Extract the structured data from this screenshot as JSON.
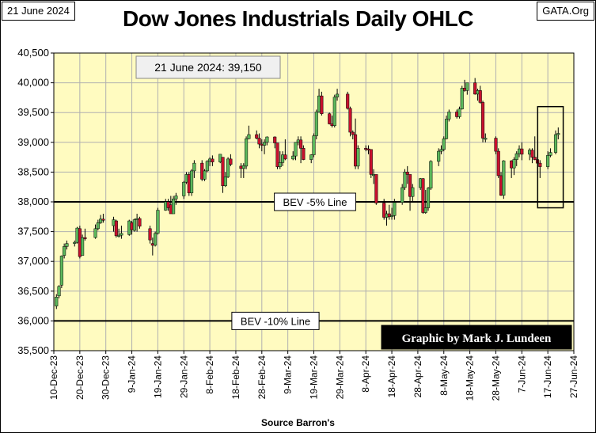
{
  "header": {
    "date_label": "21 June 2024",
    "source_site": "GATA.Org",
    "title": "Dow Jones Industrials Daily OHLC"
  },
  "colors": {
    "plot_background": "#fffbc0",
    "up_candle": "#5cb85c",
    "down_candle": "#c8102e",
    "grid": "#b0b0b0",
    "credit_background": "#000000",
    "credit_text": "#ffffff"
  },
  "chart_data": {
    "type": "candlestick",
    "title": "Dow Jones Industrials Daily OHLC",
    "xlabel": "Source Barron's",
    "ylabel": "",
    "ylim": [
      35500,
      40500
    ],
    "yticks": [
      35500,
      36000,
      36500,
      37000,
      37500,
      38000,
      38500,
      39000,
      39500,
      40000,
      40500
    ],
    "ytick_labels": [
      "35,500",
      "36,000",
      "36,500",
      "37,000",
      "37,500",
      "38,000",
      "38,500",
      "39,000",
      "39,500",
      "40,000",
      "40,500"
    ],
    "xticks": [
      "10-Dec-23",
      "20-Dec-23",
      "30-Dec-23",
      "9-Jan-24",
      "19-Jan-24",
      "29-Jan-24",
      "8-Feb-24",
      "18-Feb-24",
      "28-Feb-24",
      "9-Mar-24",
      "19-Mar-24",
      "29-Mar-24",
      "8-Apr-24",
      "18-Apr-24",
      "28-Apr-24",
      "8-May-24",
      "18-May-24",
      "28-May-24",
      "7-Jun-24",
      "17-Jun-24",
      "27-Jun-24"
    ],
    "xlim": [
      "2023-12-10",
      "2024-06-27"
    ],
    "grid": true,
    "current_value_label": "21 June 2024:  39,150",
    "reference_lines": [
      {
        "value": 38000,
        "label": "BEV -5% Line"
      },
      {
        "value": 36000,
        "label": "BEV -10% Line"
      }
    ],
    "highlight_box": {
      "x_start": "2024-06-14",
      "x_end": "2024-06-22",
      "y_low": 37900,
      "y_high": 39600
    },
    "credit": "Graphic by Mark J. Lundeen",
    "candles": [
      {
        "date": "2023-12-11",
        "o": 36250,
        "h": 36450,
        "l": 36200,
        "c": 36400
      },
      {
        "date": "2023-12-12",
        "o": 36420,
        "h": 36600,
        "l": 36380,
        "c": 36580
      },
      {
        "date": "2023-12-13",
        "o": 36600,
        "h": 37100,
        "l": 36550,
        "c": 37090
      },
      {
        "date": "2023-12-14",
        "o": 37100,
        "h": 37300,
        "l": 37050,
        "c": 37250
      },
      {
        "date": "2023-12-15",
        "o": 37250,
        "h": 37350,
        "l": 37200,
        "c": 37300
      },
      {
        "date": "2023-12-18",
        "o": 37300,
        "h": 37350,
        "l": 37250,
        "c": 37320
      },
      {
        "date": "2023-12-19",
        "o": 37320,
        "h": 37580,
        "l": 37300,
        "c": 37560
      },
      {
        "date": "2023-12-20",
        "o": 37550,
        "h": 37600,
        "l": 37050,
        "c": 37080
      },
      {
        "date": "2023-12-21",
        "o": 37100,
        "h": 37450,
        "l": 37100,
        "c": 37400
      },
      {
        "date": "2023-12-22",
        "o": 37400,
        "h": 37550,
        "l": 37350,
        "c": 37380
      },
      {
        "date": "2023-12-26",
        "o": 37400,
        "h": 37620,
        "l": 37380,
        "c": 37550
      },
      {
        "date": "2023-12-27",
        "o": 37550,
        "h": 37700,
        "l": 37520,
        "c": 37650
      },
      {
        "date": "2023-12-28",
        "o": 37650,
        "h": 37780,
        "l": 37630,
        "c": 37710
      },
      {
        "date": "2023-12-29",
        "o": 37710,
        "h": 37800,
        "l": 37650,
        "c": 37690
      },
      {
        "date": "2024-01-02",
        "o": 37600,
        "h": 37750,
        "l": 37500,
        "c": 37700
      },
      {
        "date": "2024-01-03",
        "o": 37680,
        "h": 37700,
        "l": 37400,
        "c": 37430
      },
      {
        "date": "2024-01-04",
        "o": 37420,
        "h": 37550,
        "l": 37400,
        "c": 37440
      },
      {
        "date": "2024-01-05",
        "o": 37440,
        "h": 37600,
        "l": 37380,
        "c": 37470
      },
      {
        "date": "2024-01-08",
        "o": 37450,
        "h": 37700,
        "l": 37430,
        "c": 37680
      },
      {
        "date": "2024-01-09",
        "o": 37650,
        "h": 37680,
        "l": 37450,
        "c": 37530
      },
      {
        "date": "2024-01-10",
        "o": 37520,
        "h": 37720,
        "l": 37500,
        "c": 37700
      },
      {
        "date": "2024-01-11",
        "o": 37700,
        "h": 37800,
        "l": 37500,
        "c": 37720
      },
      {
        "date": "2024-01-12",
        "o": 37720,
        "h": 37750,
        "l": 37550,
        "c": 37590
      },
      {
        "date": "2024-01-16",
        "o": 37550,
        "h": 37600,
        "l": 37300,
        "c": 37360
      },
      {
        "date": "2024-01-17",
        "o": 37300,
        "h": 37400,
        "l": 37100,
        "c": 37270
      },
      {
        "date": "2024-01-18",
        "o": 37270,
        "h": 37500,
        "l": 37250,
        "c": 37470
      },
      {
        "date": "2024-01-19",
        "o": 37470,
        "h": 37900,
        "l": 37450,
        "c": 37860
      },
      {
        "date": "2024-01-22",
        "o": 37860,
        "h": 38050,
        "l": 37850,
        "c": 38000
      },
      {
        "date": "2024-01-23",
        "o": 38000,
        "h": 38050,
        "l": 37850,
        "c": 37900
      },
      {
        "date": "2024-01-24",
        "o": 37950,
        "h": 38100,
        "l": 37800,
        "c": 37800
      },
      {
        "date": "2024-01-25",
        "o": 37800,
        "h": 38100,
        "l": 37800,
        "c": 38050
      },
      {
        "date": "2024-01-26",
        "o": 38050,
        "h": 38150,
        "l": 37950,
        "c": 38100
      },
      {
        "date": "2024-01-29",
        "o": 38100,
        "h": 38350,
        "l": 38050,
        "c": 38330
      },
      {
        "date": "2024-01-30",
        "o": 38330,
        "h": 38500,
        "l": 38300,
        "c": 38460
      },
      {
        "date": "2024-01-31",
        "o": 38460,
        "h": 38500,
        "l": 38100,
        "c": 38150
      },
      {
        "date": "2024-02-01",
        "o": 38150,
        "h": 38550,
        "l": 38100,
        "c": 38520
      },
      {
        "date": "2024-02-02",
        "o": 38520,
        "h": 38700,
        "l": 38400,
        "c": 38650
      },
      {
        "date": "2024-02-05",
        "o": 38650,
        "h": 38700,
        "l": 38350,
        "c": 38380
      },
      {
        "date": "2024-02-06",
        "o": 38380,
        "h": 38550,
        "l": 38350,
        "c": 38520
      },
      {
        "date": "2024-02-07",
        "o": 38520,
        "h": 38700,
        "l": 38500,
        "c": 38680
      },
      {
        "date": "2024-02-08",
        "o": 38680,
        "h": 38750,
        "l": 38600,
        "c": 38720
      },
      {
        "date": "2024-02-09",
        "o": 38720,
        "h": 38780,
        "l": 38600,
        "c": 38670
      },
      {
        "date": "2024-02-12",
        "o": 38670,
        "h": 38800,
        "l": 38650,
        "c": 38800
      },
      {
        "date": "2024-02-13",
        "o": 38750,
        "h": 38750,
        "l": 38150,
        "c": 38270
      },
      {
        "date": "2024-02-14",
        "o": 38270,
        "h": 38500,
        "l": 38250,
        "c": 38420
      },
      {
        "date": "2024-02-15",
        "o": 38420,
        "h": 38750,
        "l": 38400,
        "c": 38720
      },
      {
        "date": "2024-02-16",
        "o": 38720,
        "h": 38800,
        "l": 38600,
        "c": 38630
      },
      {
        "date": "2024-02-20",
        "o": 38600,
        "h": 38650,
        "l": 38400,
        "c": 38560
      },
      {
        "date": "2024-02-21",
        "o": 38560,
        "h": 38650,
        "l": 38400,
        "c": 38610
      },
      {
        "date": "2024-02-22",
        "o": 38600,
        "h": 39100,
        "l": 38550,
        "c": 39060
      },
      {
        "date": "2024-02-23",
        "o": 39060,
        "h": 39280,
        "l": 39050,
        "c": 39130
      },
      {
        "date": "2024-02-26",
        "o": 39130,
        "h": 39200,
        "l": 39050,
        "c": 39070
      },
      {
        "date": "2024-02-27",
        "o": 39070,
        "h": 39150,
        "l": 38900,
        "c": 38970
      },
      {
        "date": "2024-02-28",
        "o": 38970,
        "h": 39050,
        "l": 38850,
        "c": 38950
      },
      {
        "date": "2024-02-29",
        "o": 38950,
        "h": 39050,
        "l": 38800,
        "c": 39000
      },
      {
        "date": "2024-03-01",
        "o": 39000,
        "h": 39100,
        "l": 38950,
        "c": 39090
      },
      {
        "date": "2024-03-04",
        "o": 39090,
        "h": 39100,
        "l": 38900,
        "c": 38990
      },
      {
        "date": "2024-03-05",
        "o": 38990,
        "h": 38990,
        "l": 38550,
        "c": 38590
      },
      {
        "date": "2024-03-06",
        "o": 38590,
        "h": 38850,
        "l": 38550,
        "c": 38660
      },
      {
        "date": "2024-03-07",
        "o": 38660,
        "h": 38850,
        "l": 38600,
        "c": 38790
      },
      {
        "date": "2024-03-08",
        "o": 38790,
        "h": 39050,
        "l": 38700,
        "c": 38720
      },
      {
        "date": "2024-03-11",
        "o": 38720,
        "h": 38850,
        "l": 38700,
        "c": 38770
      },
      {
        "date": "2024-03-12",
        "o": 38770,
        "h": 39000,
        "l": 38700,
        "c": 39000
      },
      {
        "date": "2024-03-13",
        "o": 39000,
        "h": 39100,
        "l": 38950,
        "c": 39040
      },
      {
        "date": "2024-03-14",
        "o": 39040,
        "h": 39100,
        "l": 38650,
        "c": 38900
      },
      {
        "date": "2024-03-15",
        "o": 38900,
        "h": 38950,
        "l": 38700,
        "c": 38710
      },
      {
        "date": "2024-03-18",
        "o": 38710,
        "h": 38800,
        "l": 38650,
        "c": 38790
      },
      {
        "date": "2024-03-19",
        "o": 38790,
        "h": 39150,
        "l": 38750,
        "c": 39110
      },
      {
        "date": "2024-03-20",
        "o": 39110,
        "h": 39550,
        "l": 39050,
        "c": 39510
      },
      {
        "date": "2024-03-21",
        "o": 39510,
        "h": 39900,
        "l": 39500,
        "c": 39780
      },
      {
        "date": "2024-03-22",
        "o": 39780,
        "h": 39850,
        "l": 39450,
        "c": 39480
      },
      {
        "date": "2024-03-25",
        "o": 39480,
        "h": 39500,
        "l": 39300,
        "c": 39310
      },
      {
        "date": "2024-03-26",
        "o": 39310,
        "h": 39450,
        "l": 39250,
        "c": 39280
      },
      {
        "date": "2024-03-27",
        "o": 39280,
        "h": 39800,
        "l": 39250,
        "c": 39760
      },
      {
        "date": "2024-03-28",
        "o": 39760,
        "h": 39900,
        "l": 39700,
        "c": 39810
      },
      {
        "date": "2024-04-01",
        "o": 39810,
        "h": 39850,
        "l": 39550,
        "c": 39570
      },
      {
        "date": "2024-04-02",
        "o": 39570,
        "h": 39600,
        "l": 39100,
        "c": 39170
      },
      {
        "date": "2024-04-03",
        "o": 39170,
        "h": 39200,
        "l": 39050,
        "c": 39130
      },
      {
        "date": "2024-04-04",
        "o": 39130,
        "h": 39400,
        "l": 38550,
        "c": 38600
      },
      {
        "date": "2024-04-05",
        "o": 38600,
        "h": 38950,
        "l": 38550,
        "c": 38900
      },
      {
        "date": "2024-04-08",
        "o": 38900,
        "h": 38950,
        "l": 38850,
        "c": 38890
      },
      {
        "date": "2024-04-09",
        "o": 38890,
        "h": 38950,
        "l": 38800,
        "c": 38880
      },
      {
        "date": "2024-04-10",
        "o": 38880,
        "h": 38880,
        "l": 38400,
        "c": 38460
      },
      {
        "date": "2024-04-11",
        "o": 38460,
        "h": 38550,
        "l": 38300,
        "c": 38460
      },
      {
        "date": "2024-04-12",
        "o": 38460,
        "h": 38460,
        "l": 37950,
        "c": 37980
      },
      {
        "date": "2024-04-15",
        "o": 37980,
        "h": 38050,
        "l": 37700,
        "c": 37740
      },
      {
        "date": "2024-04-16",
        "o": 37740,
        "h": 37850,
        "l": 37600,
        "c": 37800
      },
      {
        "date": "2024-04-17",
        "o": 37800,
        "h": 37950,
        "l": 37700,
        "c": 37750
      },
      {
        "date": "2024-04-18",
        "o": 37750,
        "h": 37900,
        "l": 37700,
        "c": 37770
      },
      {
        "date": "2024-04-19",
        "o": 37770,
        "h": 38050,
        "l": 37700,
        "c": 37990
      },
      {
        "date": "2024-04-22",
        "o": 37990,
        "h": 38300,
        "l": 37950,
        "c": 38240
      },
      {
        "date": "2024-04-23",
        "o": 38240,
        "h": 38550,
        "l": 38200,
        "c": 38500
      },
      {
        "date": "2024-04-24",
        "o": 38500,
        "h": 38600,
        "l": 38300,
        "c": 38460
      },
      {
        "date": "2024-04-25",
        "o": 38460,
        "h": 38460,
        "l": 37850,
        "c": 38090
      },
      {
        "date": "2024-04-26",
        "o": 38090,
        "h": 38300,
        "l": 38000,
        "c": 38240
      },
      {
        "date": "2024-04-29",
        "o": 38240,
        "h": 38400,
        "l": 38200,
        "c": 38390
      },
      {
        "date": "2024-04-30",
        "o": 38390,
        "h": 38400,
        "l": 37800,
        "c": 37820
      },
      {
        "date": "2024-05-01",
        "o": 37820,
        "h": 38200,
        "l": 37800,
        "c": 37900
      },
      {
        "date": "2024-05-02",
        "o": 37900,
        "h": 38250,
        "l": 37850,
        "c": 38230
      },
      {
        "date": "2024-05-03",
        "o": 38230,
        "h": 38700,
        "l": 38200,
        "c": 38680
      },
      {
        "date": "2024-05-06",
        "o": 38680,
        "h": 38900,
        "l": 38600,
        "c": 38850
      },
      {
        "date": "2024-05-07",
        "o": 38850,
        "h": 38950,
        "l": 38800,
        "c": 38880
      },
      {
        "date": "2024-05-08",
        "o": 38880,
        "h": 39100,
        "l": 38850,
        "c": 39060
      },
      {
        "date": "2024-05-09",
        "o": 39060,
        "h": 39450,
        "l": 39050,
        "c": 39390
      },
      {
        "date": "2024-05-10",
        "o": 39390,
        "h": 39550,
        "l": 39350,
        "c": 39510
      },
      {
        "date": "2024-05-13",
        "o": 39510,
        "h": 39550,
        "l": 39400,
        "c": 39430
      },
      {
        "date": "2024-05-14",
        "o": 39430,
        "h": 39600,
        "l": 39400,
        "c": 39560
      },
      {
        "date": "2024-05-15",
        "o": 39560,
        "h": 39950,
        "l": 39550,
        "c": 39910
      },
      {
        "date": "2024-05-16",
        "o": 39910,
        "h": 40050,
        "l": 39850,
        "c": 39870
      },
      {
        "date": "2024-05-17",
        "o": 39870,
        "h": 40000,
        "l": 39800,
        "c": 40000
      },
      {
        "date": "2024-05-20",
        "o": 40000,
        "h": 40080,
        "l": 39800,
        "c": 39810
      },
      {
        "date": "2024-05-21",
        "o": 39810,
        "h": 39900,
        "l": 39700,
        "c": 39870
      },
      {
        "date": "2024-05-22",
        "o": 39870,
        "h": 39950,
        "l": 39650,
        "c": 39670
      },
      {
        "date": "2024-05-23",
        "o": 39670,
        "h": 39700,
        "l": 39000,
        "c": 39070
      },
      {
        "date": "2024-05-24",
        "o": 39070,
        "h": 39150,
        "l": 39000,
        "c": 39070
      },
      {
        "date": "2024-05-28",
        "o": 39070,
        "h": 39100,
        "l": 38800,
        "c": 38850
      },
      {
        "date": "2024-05-29",
        "o": 38850,
        "h": 38900,
        "l": 38400,
        "c": 38440
      },
      {
        "date": "2024-05-30",
        "o": 38440,
        "h": 38500,
        "l": 38100,
        "c": 38110
      },
      {
        "date": "2024-05-31",
        "o": 38110,
        "h": 38700,
        "l": 38050,
        "c": 38690
      },
      {
        "date": "2024-06-03",
        "o": 38690,
        "h": 38700,
        "l": 38400,
        "c": 38570
      },
      {
        "date": "2024-06-04",
        "o": 38570,
        "h": 38750,
        "l": 38450,
        "c": 38710
      },
      {
        "date": "2024-06-05",
        "o": 38710,
        "h": 38850,
        "l": 38600,
        "c": 38810
      },
      {
        "date": "2024-06-06",
        "o": 38810,
        "h": 38950,
        "l": 38750,
        "c": 38890
      },
      {
        "date": "2024-06-07",
        "o": 38890,
        "h": 39000,
        "l": 38700,
        "c": 38800
      },
      {
        "date": "2024-06-10",
        "o": 38800,
        "h": 38900,
        "l": 38700,
        "c": 38870
      },
      {
        "date": "2024-06-11",
        "o": 38870,
        "h": 38900,
        "l": 38650,
        "c": 38750
      },
      {
        "date": "2024-06-12",
        "o": 38750,
        "h": 39100,
        "l": 38700,
        "c": 38710
      },
      {
        "date": "2024-06-13",
        "o": 38710,
        "h": 38800,
        "l": 38450,
        "c": 38650
      },
      {
        "date": "2024-06-14",
        "o": 38650,
        "h": 38700,
        "l": 38400,
        "c": 38590
      },
      {
        "date": "2024-06-17",
        "o": 38590,
        "h": 38850,
        "l": 38550,
        "c": 38780
      },
      {
        "date": "2024-06-18",
        "o": 38780,
        "h": 38900,
        "l": 38750,
        "c": 38830
      },
      {
        "date": "2024-06-20",
        "o": 38830,
        "h": 39200,
        "l": 38800,
        "c": 39130
      },
      {
        "date": "2024-06-21",
        "o": 39130,
        "h": 39250,
        "l": 39050,
        "c": 39150
      }
    ]
  },
  "footer": {
    "source": "Source Barron's"
  }
}
